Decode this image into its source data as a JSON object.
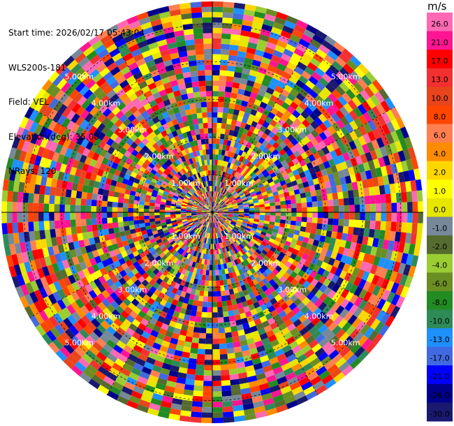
{
  "header": {
    "start_time": "Start time: 2026/02/17 05:43:04",
    "instrument": "WLS200s-181",
    "field": "Field: VEL",
    "elevation": "Elevation(deg): 35.00",
    "nrays": "NRays: 120"
  },
  "chart_data": {
    "type": "heatmap",
    "projection": "polar-ppi",
    "field": "VEL",
    "elevation_deg": 35.0,
    "n_rays": 120,
    "range_ring_labels": [
      "1.00km",
      "2.00km",
      "3.00km",
      "4.00km",
      "5.00km"
    ],
    "colorbar": {
      "unit": "m/s",
      "tick_labels": [
        "26.0",
        "21.0",
        "17.0",
        "13.0",
        "10.0",
        "8.0",
        "6.0",
        "4.0",
        "2.0",
        "1.0",
        "0.0",
        "-1.0",
        "-2.0",
        "-4.0",
        "-6.0",
        "-8.0",
        "-10.0",
        "-13.0",
        "-17.0",
        "-21.0",
        "-26.0",
        "-30.0"
      ],
      "colors": [
        "#ff69b4",
        "#ff1493",
        "#ff0000",
        "#f33030",
        "#e8451c",
        "#ff4500",
        "#ff7f50",
        "#ff8c00",
        "#ffd700",
        "#ffff00",
        "#e6e600",
        "#778899",
        "#556b2f",
        "#9acd32",
        "#6b8e23",
        "#228b22",
        "#2e8b57",
        "#1e90ff",
        "#4169e1",
        "#0000ff",
        "#00008b",
        "#191970"
      ]
    }
  }
}
